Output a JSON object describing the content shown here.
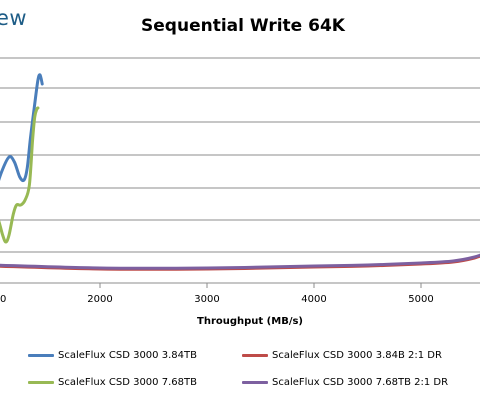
{
  "logo_text": "ew",
  "chart_data": {
    "type": "line",
    "title": "Sequential Write 64K",
    "xlabel": "Throughput (MB/s)",
    "ylabel": "",
    "xlim": [
      1000,
      5700
    ],
    "x_ticks": [
      "2000",
      "3000",
      "4000",
      "5000"
    ],
    "grid": true,
    "legend_position": "bottom",
    "series": [
      {
        "name": "ScaleFlux CSD 3000 3.84TB",
        "color": "#4a7ebb",
        "points": [
          [
            1000,
            198
          ],
          [
            1080,
            172
          ],
          [
            1150,
            157
          ],
          [
            1200,
            162
          ],
          [
            1250,
            177
          ],
          [
            1290,
            180
          ],
          [
            1320,
            168
          ],
          [
            1350,
            138
          ],
          [
            1390,
            104
          ],
          [
            1420,
            80
          ],
          [
            1440,
            75
          ],
          [
            1460,
            84
          ]
        ]
      },
      {
        "name": "ScaleFlux CSD 3000 3.84B 2:1 DR",
        "color": "#be4b48",
        "points": [
          [
            1000,
            266
          ],
          [
            2000,
            269
          ],
          [
            3000,
            269
          ],
          [
            4000,
            267
          ],
          [
            4500,
            266
          ],
          [
            5000,
            264
          ],
          [
            5300,
            262
          ],
          [
            5500,
            258
          ],
          [
            5600,
            254
          ],
          [
            5700,
            250
          ]
        ]
      },
      {
        "name": "ScaleFlux CSD 3000 7.68TB",
        "color": "#98b954",
        "points": [
          [
            1000,
            211
          ],
          [
            1050,
            220
          ],
          [
            1090,
            235
          ],
          [
            1120,
            242
          ],
          [
            1150,
            235
          ],
          [
            1190,
            214
          ],
          [
            1220,
            205
          ],
          [
            1260,
            205
          ],
          [
            1300,
            200
          ],
          [
            1340,
            185
          ],
          [
            1370,
            140
          ],
          [
            1390,
            117
          ],
          [
            1410,
            109
          ],
          [
            1420,
            108
          ]
        ]
      },
      {
        "name": "ScaleFlux CSD 3000 7.68TB  2:1 DR",
        "color": "#7d60a0",
        "points": [
          [
            1000,
            265
          ],
          [
            2000,
            268
          ],
          [
            3000,
            268
          ],
          [
            4000,
            266
          ],
          [
            4500,
            265
          ],
          [
            5000,
            263
          ],
          [
            5300,
            261
          ],
          [
            5500,
            257
          ],
          [
            5600,
            253
          ],
          [
            5700,
            249
          ]
        ]
      }
    ]
  }
}
